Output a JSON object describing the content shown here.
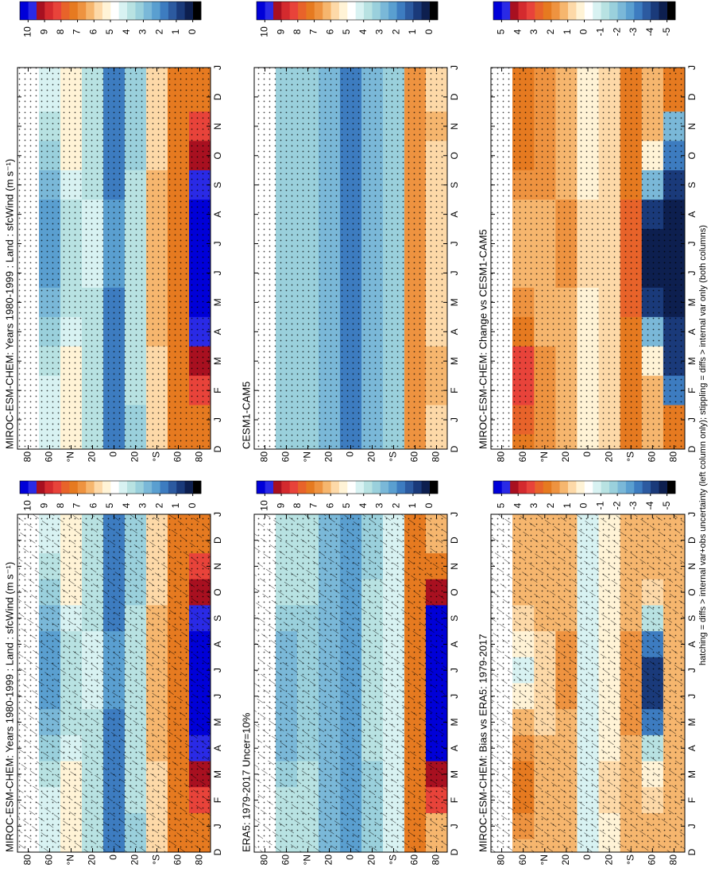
{
  "colors": [
    "#000000",
    "#0d1f4f",
    "#1a3a7a",
    "#2c5aa0",
    "#3d7cc0",
    "#5a9fd0",
    "#7ab8d8",
    "#9ad0dc",
    "#b8e2e2",
    "#d8f2f2",
    "#ffffff",
    "#fff3d6",
    "#fdd9a8",
    "#f6b66e",
    "#ee9340",
    "#e67a20",
    "#e8632a",
    "#e8433a",
    "#d42a2e",
    "#a81020",
    "#2a2ae6",
    "#0000d8"
  ],
  "footnote": "hatching = diffs > internal var+obs uncertainty (left column only); stippling = diffs > internal var only (both columns)",
  "chart_data": [
    {
      "type": "heatmap",
      "title": "MIROC-ESM-CHEM: Years 1980-1999 : Land : sfcWind (m s⁻¹)",
      "categories": [
        "D",
        "J",
        "F",
        "M",
        "A",
        "M",
        "J",
        "J",
        "A",
        "S",
        "O",
        "N",
        "D",
        "J"
      ],
      "ylim": [
        -90,
        90
      ],
      "yticks": [
        80,
        60,
        {
          "value": 40,
          "label": "°N"
        },
        20,
        0,
        {
          "value": -20,
          "label": "20"
        },
        {
          "value": -40,
          "label": "°S"
        },
        {
          "value": -60,
          "label": "60"
        },
        {
          "value": -80,
          "label": "80"
        }
      ],
      "clim": [
        0,
        10
      ],
      "cticks": [
        10,
        9,
        8,
        7,
        6,
        5,
        4,
        3,
        2,
        1,
        0
      ],
      "z": [
        [
          6,
          6,
          6,
          6,
          5.5,
          5,
          4.5,
          4.5,
          5,
          5.5,
          6,
          6,
          6,
          6
        ],
        [
          4.5,
          4.5,
          4.5,
          4,
          3.5,
          3,
          2.5,
          2.5,
          2.5,
          3,
          3.5,
          4,
          4.5,
          4.5
        ],
        [
          5,
          5,
          5,
          5,
          4.5,
          4,
          4,
          4,
          4,
          4.5,
          5,
          5,
          5,
          5
        ],
        [
          4,
          4,
          4,
          4,
          4,
          4,
          4.5,
          4.5,
          4.5,
          4,
          4,
          4,
          4,
          4
        ],
        [
          2,
          2,
          2,
          2,
          2,
          2,
          2.5,
          2.5,
          2.5,
          2,
          2,
          2,
          2,
          2
        ],
        [
          3.5,
          3.5,
          4,
          4,
          4,
          4,
          4,
          4,
          4,
          4,
          3.5,
          3.5,
          3.5,
          3.5
        ],
        [
          5.5,
          5.5,
          5.5,
          5.5,
          6,
          6,
          6,
          6,
          6,
          6,
          5.5,
          5.5,
          5.5,
          5.5
        ],
        [
          7,
          7,
          7,
          7,
          7,
          7,
          7,
          7,
          7,
          7,
          7,
          7,
          7,
          7
        ],
        [
          7,
          7,
          8,
          9,
          9.5,
          10,
          10,
          10,
          10,
          9.5,
          9,
          8,
          7,
          7
        ]
      ]
    },
    {
      "type": "heatmap",
      "title": "ERA5: 1979-2017 Uncer=10%",
      "categories": [
        "D",
        "J",
        "F",
        "M",
        "A",
        "M",
        "J",
        "J",
        "A",
        "S",
        "O",
        "N",
        "D",
        "J"
      ],
      "ylim": [
        -90,
        90
      ],
      "yticks": [
        80,
        60,
        {
          "value": 40,
          "label": "°N"
        },
        20,
        0,
        {
          "value": -20,
          "label": "20"
        },
        {
          "value": -40,
          "label": "°S"
        },
        {
          "value": -60,
          "label": "60"
        },
        {
          "value": -80,
          "label": "80"
        }
      ],
      "clim": [
        0,
        10
      ],
      "cticks": [
        10,
        9,
        8,
        7,
        6,
        5,
        4,
        3,
        2,
        1,
        0
      ],
      "z": [
        [
          6,
          6,
          6,
          5.5,
          5,
          4.5,
          4.5,
          4.5,
          5,
          5.5,
          6,
          6,
          6,
          6
        ],
        [
          4,
          4,
          4,
          3.5,
          3,
          3,
          3,
          3,
          3,
          3.5,
          4,
          4,
          4,
          4
        ],
        [
          4,
          4,
          4,
          4,
          3.5,
          3.5,
          3.5,
          3.5,
          3.5,
          3.5,
          4,
          4,
          4,
          4
        ],
        [
          3,
          3,
          3,
          3,
          3,
          3,
          3,
          3,
          3,
          3,
          3,
          3,
          3,
          3
        ],
        [
          2.5,
          2.5,
          2.5,
          2.5,
          2.5,
          2.5,
          2.5,
          2.5,
          2.5,
          2.5,
          2.5,
          2.5,
          2.5,
          2.5
        ],
        [
          3.5,
          3.5,
          3.5,
          3.5,
          4,
          4,
          4,
          4,
          4,
          4,
          4,
          3.5,
          3.5,
          3.5
        ],
        [
          4.5,
          4.5,
          4.5,
          4.5,
          4.5,
          4.5,
          4.5,
          4.5,
          4.5,
          4.5,
          4.5,
          4.5,
          4.5,
          4.5
        ],
        [
          7,
          7,
          7,
          7,
          7,
          7,
          7,
          7,
          7,
          7,
          7,
          7,
          7,
          7
        ],
        [
          6,
          6,
          8,
          9,
          10,
          10,
          10,
          10,
          10,
          10,
          9,
          7,
          6,
          6
        ]
      ]
    },
    {
      "type": "heatmap",
      "title": "MIROC-ESM-CHEM: Bias vs ERA5: 1979-2017",
      "categories": [
        "D",
        "J",
        "F",
        "M",
        "A",
        "M",
        "J",
        "J",
        "A",
        "S",
        "O",
        "N",
        "D",
        "J"
      ],
      "ylim": [
        -90,
        90
      ],
      "yticks": [
        80,
        60,
        {
          "value": 40,
          "label": "°N"
        },
        20,
        0,
        {
          "value": -20,
          "label": "20"
        },
        {
          "value": -40,
          "label": "°S"
        },
        {
          "value": -60,
          "label": "60"
        },
        {
          "value": -80,
          "label": "80"
        }
      ],
      "clim": [
        -5,
        5
      ],
      "cticks": [
        5,
        4,
        3,
        2,
        1,
        0,
        -1,
        -2,
        -3,
        -4,
        -5
      ],
      "z": [
        [
          1,
          1,
          1.5,
          1.5,
          1,
          0.5,
          0,
          0,
          0.5,
          1,
          1.5,
          1,
          1,
          1
        ],
        [
          1,
          1.5,
          2,
          2,
          1.5,
          1,
          0,
          -0.5,
          0,
          0.5,
          1,
          1,
          1,
          1
        ],
        [
          1,
          1,
          1,
          1,
          1,
          0.5,
          0.5,
          0.5,
          0.5,
          1,
          1,
          1,
          1,
          1
        ],
        [
          1,
          1,
          1,
          1,
          1,
          1,
          1.5,
          1.5,
          1.5,
          1,
          1,
          1,
          1,
          1
        ],
        [
          -0.5,
          -0.5,
          -0.5,
          -0.5,
          -0.5,
          -0.5,
          -0.5,
          -0.5,
          -0.5,
          -0.5,
          -0.5,
          -0.5,
          -0.5,
          -0.5
        ],
        [
          0,
          0,
          0.5,
          0.5,
          0,
          0,
          0,
          0,
          0,
          0,
          0,
          0,
          0,
          0
        ],
        [
          1,
          1,
          1,
          1,
          1,
          1.5,
          1.5,
          1.5,
          1.5,
          1,
          1,
          1,
          1,
          1
        ],
        [
          1,
          1,
          0.5,
          0,
          -1,
          -3,
          -4,
          -4,
          -3,
          -1,
          0.5,
          1,
          1,
          1
        ],
        [
          1,
          1,
          1,
          1,
          1,
          1,
          1,
          1,
          1,
          1,
          1,
          1,
          1,
          1
        ]
      ]
    },
    {
      "type": "heatmap",
      "title": "MIROC-ESM-CHEM: Years 1980-1999 : Land : sfcWind (m s⁻¹)",
      "categories": [
        "D",
        "J",
        "F",
        "M",
        "A",
        "M",
        "J",
        "J",
        "A",
        "S",
        "O",
        "N",
        "D",
        "J"
      ],
      "ylim": [
        -90,
        90
      ],
      "yticks": [
        80,
        60,
        {
          "value": 40,
          "label": "°N"
        },
        20,
        0,
        {
          "value": -20,
          "label": "20"
        },
        {
          "value": -40,
          "label": "°S"
        },
        {
          "value": -60,
          "label": "60"
        },
        {
          "value": -80,
          "label": "80"
        }
      ],
      "clim": [
        0,
        10
      ],
      "cticks": [
        10,
        9,
        8,
        7,
        6,
        5,
        4,
        3,
        2,
        1,
        0
      ],
      "z": [
        [
          6,
          6,
          6,
          6,
          5.5,
          5,
          4.5,
          4.5,
          5,
          5.5,
          6,
          6,
          6,
          6
        ],
        [
          4.5,
          4.5,
          4.5,
          4,
          3.5,
          3,
          2.5,
          2.5,
          2.5,
          3,
          3.5,
          4,
          4.5,
          4.5
        ],
        [
          5,
          5,
          5,
          5,
          4.5,
          4,
          4,
          4,
          4,
          4.5,
          5,
          5,
          5,
          5
        ],
        [
          4,
          4,
          4,
          4,
          4,
          4,
          4.5,
          4.5,
          4.5,
          4,
          4,
          4,
          4,
          4
        ],
        [
          2,
          2,
          2,
          2,
          2,
          2,
          2.5,
          2.5,
          2.5,
          2,
          2,
          2,
          2,
          2
        ],
        [
          3.5,
          3.5,
          4,
          4,
          4,
          4,
          4,
          4,
          4,
          4,
          3.5,
          3.5,
          3.5,
          3.5
        ],
        [
          5.5,
          5.5,
          5.5,
          5.5,
          6,
          6,
          6,
          6,
          6,
          6,
          5.5,
          5.5,
          5.5,
          5.5
        ],
        [
          7,
          7,
          7,
          7,
          7,
          7,
          7,
          7,
          7,
          7,
          7,
          7,
          7,
          7
        ],
        [
          7,
          7,
          8,
          9,
          9.5,
          10,
          10,
          10,
          10,
          9.5,
          9,
          8,
          7,
          7
        ]
      ]
    },
    {
      "type": "heatmap",
      "title": "CESM1-CAM5",
      "categories": [
        "D",
        "J",
        "F",
        "M",
        "A",
        "M",
        "J",
        "J",
        "A",
        "S",
        "O",
        "N",
        "D",
        "J"
      ],
      "ylim": [
        -90,
        90
      ],
      "yticks": [
        80,
        60,
        {
          "value": 40,
          "label": "°N"
        },
        20,
        0,
        {
          "value": -20,
          "label": "20"
        },
        {
          "value": -40,
          "label": "°S"
        },
        {
          "value": -60,
          "label": "60"
        },
        {
          "value": -80,
          "label": "80"
        }
      ],
      "clim": [
        0,
        10
      ],
      "cticks": [
        10,
        9,
        8,
        7,
        6,
        5,
        4,
        3,
        2,
        1,
        0
      ],
      "z": [
        [
          4.5,
          4.5,
          4.5,
          4.5,
          4,
          4,
          4,
          4,
          4,
          4,
          4.5,
          4.5,
          4.5,
          4.5
        ],
        [
          3.5,
          3.5,
          3.5,
          3.5,
          3.5,
          3.5,
          3.5,
          3.5,
          3.5,
          3.5,
          3.5,
          3.5,
          3.5,
          3.5
        ],
        [
          3.5,
          3.5,
          3.5,
          3.5,
          3.5,
          3.5,
          3.5,
          3.5,
          3.5,
          3.5,
          3.5,
          3.5,
          3.5,
          3.5
        ],
        [
          3,
          3,
          3,
          3,
          3,
          3,
          3,
          3,
          3,
          3,
          3,
          3,
          3,
          3
        ],
        [
          2,
          2,
          2,
          2,
          2,
          2,
          2,
          2,
          2,
          2,
          2,
          2,
          2,
          2
        ],
        [
          3,
          3,
          3,
          3,
          3,
          3,
          3,
          3,
          3,
          3,
          3,
          3,
          3,
          3
        ],
        [
          3.5,
          3.5,
          3.5,
          3.5,
          3.5,
          3.5,
          3.5,
          3.5,
          3.5,
          3.5,
          3.5,
          3.5,
          3.5,
          3.5
        ],
        [
          6.5,
          6.5,
          6.5,
          6.5,
          6.5,
          6.5,
          6.5,
          6.5,
          6.5,
          6.5,
          6.5,
          6.5,
          6.5,
          6.5
        ],
        [
          5.5,
          5.5,
          6,
          6,
          5.5,
          5.5,
          5.5,
          5.5,
          5.5,
          5.5,
          5.5,
          6,
          5.5,
          5.5
        ]
      ]
    },
    {
      "type": "heatmap",
      "title": "MIROC-ESM-CHEM: Change vs CESM1-CAM5",
      "categories": [
        "D",
        "J",
        "F",
        "M",
        "A",
        "M",
        "J",
        "J",
        "A",
        "S",
        "O",
        "N",
        "D",
        "J"
      ],
      "ylim": [
        -90,
        90
      ],
      "yticks": [
        80,
        60,
        {
          "value": 40,
          "label": "°N"
        },
        20,
        0,
        {
          "value": -20,
          "label": "20"
        },
        {
          "value": -40,
          "label": "°S"
        },
        {
          "value": -60,
          "label": "60"
        },
        {
          "value": -80,
          "label": "80"
        }
      ],
      "clim": [
        -5,
        5
      ],
      "cticks": [
        5,
        4,
        3,
        2,
        1,
        0,
        -1,
        -2,
        -3,
        -4,
        -5
      ],
      "z": [
        [
          2,
          2,
          2,
          2,
          1.5,
          1.5,
          1,
          1,
          1.5,
          2,
          2,
          2,
          2,
          2
        ],
        [
          2,
          2.5,
          3,
          3,
          2,
          1.5,
          1,
          1,
          1,
          1.5,
          2,
          2,
          2,
          2
        ],
        [
          1.5,
          1.5,
          1.5,
          1.5,
          1,
          1,
          1,
          1,
          1,
          1.5,
          1.5,
          1.5,
          1.5,
          1.5
        ],
        [
          1,
          1,
          1,
          1,
          1,
          1,
          1.5,
          1.5,
          1.5,
          1,
          1,
          1,
          1,
          1
        ],
        [
          0,
          0,
          0,
          0,
          0,
          0,
          0.5,
          0.5,
          0.5,
          0,
          0,
          0,
          0,
          0
        ],
        [
          0.5,
          0.5,
          0.5,
          0.5,
          0.5,
          0.5,
          0.5,
          0.5,
          0.5,
          0.5,
          0.5,
          0.5,
          0.5,
          0.5
        ],
        [
          2,
          2,
          2,
          2,
          2,
          2.5,
          2.5,
          2.5,
          2.5,
          2,
          2,
          2,
          2,
          2
        ],
        [
          1,
          1,
          1,
          0,
          -2,
          -4,
          -4.5,
          -4.5,
          -4,
          -2,
          0,
          1,
          1,
          1
        ],
        [
          2,
          2,
          -3,
          -4,
          -4,
          -4.5,
          -4.5,
          -4.5,
          -4.5,
          -4,
          -3,
          -2,
          2,
          2
        ]
      ]
    }
  ]
}
